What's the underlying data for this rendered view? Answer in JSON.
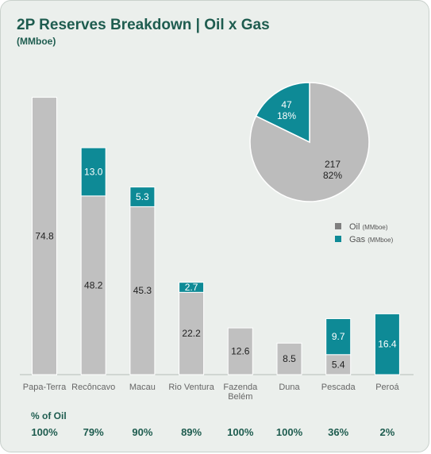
{
  "header": {
    "title": "2P Reserves Breakdown | Oil x Gas",
    "subtitle": "(MMboe)"
  },
  "colors": {
    "oil": "#c0c0c0",
    "gas": "#0e8a96",
    "pie_oil": "#bcbcbc",
    "text_green": "#1e5c4f",
    "legend_oil": "#7f7f7f"
  },
  "chart_data": [
    {
      "type": "bar",
      "stacked": true,
      "categories": [
        "Papa-Terra",
        "Recôncavo",
        "Macau",
        "Rio Ventura",
        "Fazenda Belém",
        "Duna",
        "Pescada",
        "Peroá"
      ],
      "category_lines": [
        [
          "Papa-Terra"
        ],
        [
          "Recôncavo"
        ],
        [
          "Macau"
        ],
        [
          "Rio Ventura"
        ],
        [
          "Fazenda",
          "Belém"
        ],
        [
          "Duna"
        ],
        [
          "Pescada"
        ],
        [
          "Peroá"
        ]
      ],
      "series": [
        {
          "key": "oil",
          "values": [
            74.8,
            48.2,
            45.3,
            22.2,
            12.6,
            8.5,
            5.4,
            null
          ]
        },
        {
          "key": "gas",
          "values": [
            null,
            13.0,
            5.3,
            2.7,
            null,
            null,
            9.7,
            16.4
          ]
        }
      ],
      "labels": {
        "oil": [
          "74.8",
          "48.2",
          "45.3",
          "22.2",
          "12.6",
          "8.5",
          "5.4",
          ""
        ],
        "gas": [
          "",
          "13.0",
          "5.3",
          "2.7",
          "",
          "",
          "9.7",
          "16.4"
        ]
      },
      "ylim": [
        0,
        76
      ]
    },
    {
      "type": "pie",
      "slices": [
        {
          "key": "oil",
          "value": 217,
          "value_label": "217",
          "pct_label": "82%"
        },
        {
          "key": "gas",
          "value": 47,
          "value_label": "47",
          "pct_label": "18%"
        }
      ],
      "legend": [
        {
          "key": "oil",
          "label": "Oil",
          "unit": "(MMboe)"
        },
        {
          "key": "gas",
          "label": "Gas",
          "unit": "(MMboe)"
        }
      ],
      "legend_position": "below-pie"
    }
  ],
  "pct_oil": {
    "heading": "% of Oil",
    "values": [
      "100%",
      "79%",
      "90%",
      "89%",
      "100%",
      "100%",
      "36%",
      "2%"
    ]
  }
}
